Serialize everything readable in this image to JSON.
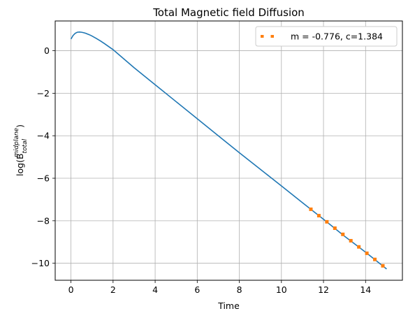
{
  "chart_data": {
    "type": "line",
    "title": "Total Magnetic field Diffusion",
    "xlabel": "Time",
    "ylabel_base": "log(B",
    "ylabel_sup": "midplane",
    "ylabel_sub": "total",
    "ylabel_close": ")",
    "xlim": [
      -0.75,
      15.75
    ],
    "ylim": [
      -10.8,
      1.4
    ],
    "xticks": [
      0,
      2,
      4,
      6,
      8,
      10,
      12,
      14
    ],
    "yticks": [
      0,
      -2,
      -4,
      -6,
      -8,
      -10
    ],
    "grid": true,
    "legend_position": "top-right",
    "series": [
      {
        "role": "data",
        "style": "solid",
        "color": "#1f77b4",
        "x": [
          0,
          0.1,
          0.2,
          0.3,
          0.4,
          0.5,
          0.6,
          0.7,
          0.8,
          0.9,
          1.0,
          1.2,
          1.4,
          1.6,
          1.8,
          2.0,
          3,
          4,
          5,
          6,
          7,
          8,
          9,
          10,
          11,
          12,
          13,
          14,
          15
        ],
        "y": [
          0.55,
          0.72,
          0.82,
          0.87,
          0.88,
          0.87,
          0.85,
          0.82,
          0.78,
          0.74,
          0.69,
          0.58,
          0.46,
          0.33,
          0.19,
          0.05,
          -0.8,
          -1.6,
          -2.4,
          -3.2,
          -4.0,
          -4.8,
          -5.58,
          -6.36,
          -7.15,
          -7.93,
          -8.73,
          -9.48,
          -10.27
        ]
      },
      {
        "role": "fit",
        "name": "m = -0.776, c=1.384",
        "style": "dotted",
        "color": "#ff7f0e",
        "x": [
          11.4,
          11.78,
          12.16,
          12.54,
          12.92,
          13.3,
          13.68,
          14.06,
          14.44,
          14.82
        ],
        "y": [
          -7.46,
          -7.76,
          -8.05,
          -8.35,
          -8.64,
          -8.94,
          -9.23,
          -9.53,
          -9.82,
          -10.12
        ]
      }
    ]
  }
}
